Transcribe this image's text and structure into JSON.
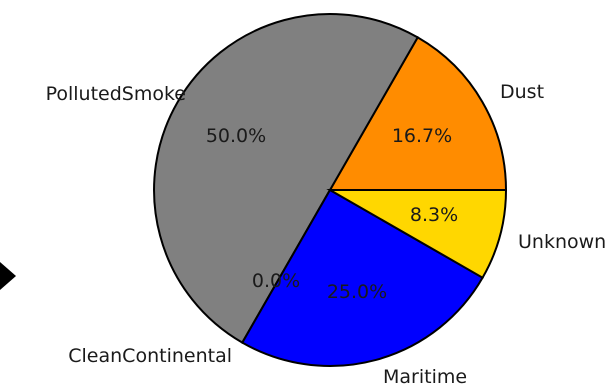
{
  "chart_data": {
    "type": "pie",
    "title": "",
    "slices": [
      {
        "label": "Dust",
        "value": 16.7,
        "pct_label": "16.7%",
        "color": "#ff8c00"
      },
      {
        "label": "PollutedSmoke",
        "value": 50.0,
        "pct_label": "50.0%",
        "color": "#808080"
      },
      {
        "label": "CleanContinental",
        "value": 0.0,
        "pct_label": "0.0%",
        "color": "#ffffff"
      },
      {
        "label": "Maritime",
        "value": 25.0,
        "pct_label": "25.0%",
        "color": "#0000ff"
      },
      {
        "label": "Unknown",
        "value": 8.3,
        "pct_label": "8.3%",
        "color": "#ffd700"
      }
    ],
    "start_angle_deg": 0,
    "direction": "counterclockwise"
  },
  "decor": {
    "arrow_icon": "play-triangle-icon"
  }
}
